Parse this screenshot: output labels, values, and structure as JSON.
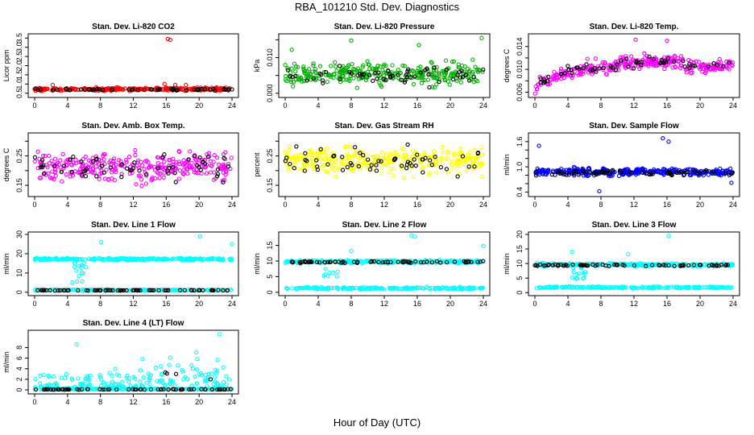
{
  "title": "RBA_101210  Std. Dev. Diagnostics",
  "xlabel": "Hour of Day (UTC)",
  "chart_data": [
    {
      "type": "scatter",
      "title": "Stan. Dev. Li-820 CO2",
      "ylabel": "Licor ppm",
      "xlim": [
        0,
        24
      ],
      "ylim": [
        0.4,
        3.6
      ],
      "xticks": [
        0,
        4,
        8,
        12,
        16,
        20,
        24
      ],
      "yticks": [
        0.5,
        1.0,
        1.5,
        2.0,
        2.5,
        3.0,
        3.5
      ],
      "ytick_labels": [
        "0.5",
        "1.0",
        "1.5",
        "2.0",
        "2.5",
        "3.0",
        "3.5"
      ],
      "series": [
        {
          "color": "#ff0000",
          "base": 0.72,
          "spread": 0.06,
          "n": 260,
          "outliers": [
            [
              16.2,
              3.45
            ],
            [
              16.5,
              3.4
            ],
            [
              18.4,
              0.95
            ],
            [
              15.8,
              1.0
            ],
            [
              2.2,
              0.95
            ],
            [
              17.1,
              0.95
            ]
          ]
        },
        {
          "color": "#000000",
          "base": 0.7,
          "spread": 0.04,
          "n": 60
        }
      ]
    },
    {
      "type": "scatter",
      "title": "Stan. Dev. Li-820 Pressure",
      "ylabel": "kPa",
      "xlim": [
        0,
        24
      ],
      "ylim": [
        -0.0005,
        0.016
      ],
      "xticks": [
        0,
        4,
        8,
        12,
        16,
        20,
        24
      ],
      "yticks": [
        0.0,
        0.005,
        0.01,
        0.015
      ],
      "ytick_labels": [
        "0.000",
        "",
        "0.010",
        ""
      ],
      "series": [
        {
          "color": "#00b000",
          "base": 0.0055,
          "spread": 0.0025,
          "n": 300,
          "outliers": [
            [
              23.8,
              0.0155
            ],
            [
              8.0,
              0.0148
            ],
            [
              16.2,
              0.0135
            ],
            [
              0.8,
              0.0122
            ]
          ]
        },
        {
          "color": "#000000",
          "base": 0.005,
          "spread": 0.002,
          "n": 60
        }
      ]
    },
    {
      "type": "scatter",
      "title": "Stan. Dev. Li-820 Temp.",
      "ylabel": "degrees C",
      "xlim": [
        0,
        24
      ],
      "ylim": [
        0.0055,
        0.0158
      ],
      "xticks": [
        0,
        4,
        8,
        12,
        16,
        20,
        24
      ],
      "yticks": [
        0.006,
        0.008,
        0.01,
        0.012,
        0.014
      ],
      "ytick_labels": [
        "0.006",
        "",
        "0.010",
        "",
        "0.014"
      ],
      "series": [
        {
          "color": "#ff00ff",
          "curve": "rise",
          "spread": 0.0008,
          "n": 320,
          "outliers": [
            [
              12.2,
              0.0152
            ],
            [
              16.0,
              0.015
            ]
          ]
        },
        {
          "color": "#000000",
          "curve": "rise",
          "spread": 0.0006,
          "n": 60
        }
      ]
    },
    {
      "type": "scatter",
      "title": "Stan. Dev. Amb. Box Temp.",
      "ylabel": "degrees C",
      "xlim": [
        0,
        24
      ],
      "ylim": [
        0.12,
        0.32
      ],
      "xticks": [
        0,
        4,
        8,
        12,
        16,
        20,
        24
      ],
      "yticks": [
        0.15,
        0.2,
        0.25,
        0.3
      ],
      "ytick_labels": [
        "0.15",
        "",
        "0.25",
        ""
      ],
      "series": [
        {
          "color": "#ff00ff",
          "base": 0.215,
          "spread": 0.04,
          "n": 300
        },
        {
          "color": "#000000",
          "base": 0.215,
          "spread": 0.04,
          "n": 60
        }
      ]
    },
    {
      "type": "scatter",
      "title": "Stan. Dev. Gas Stream RH",
      "ylabel": "percent",
      "xlim": [
        0,
        24
      ],
      "ylim": [
        0.12,
        0.32
      ],
      "xticks": [
        0,
        4,
        8,
        12,
        16,
        20,
        24
      ],
      "yticks": [
        0.15,
        0.2,
        0.25,
        0.3
      ],
      "ytick_labels": [
        "0.15",
        "",
        "0.25",
        ""
      ],
      "series": [
        {
          "color": "#ffff00",
          "base": 0.235,
          "spread": 0.035,
          "n": 320
        },
        {
          "color": "#000000",
          "base": 0.23,
          "spread": 0.035,
          "n": 60
        }
      ]
    },
    {
      "type": "scatter",
      "title": "Stan. Dev. Sample Flow",
      "ylabel": "ml/min",
      "xlim": [
        0,
        24
      ],
      "ylim": [
        0.35,
        1.75
      ],
      "xticks": [
        0,
        4,
        8,
        12,
        16,
        20,
        24
      ],
      "yticks": [
        0.4,
        0.6,
        0.8,
        1.0,
        1.2,
        1.4,
        1.6
      ],
      "ytick_labels": [
        "0.4",
        "",
        "",
        "1.0",
        "",
        "",
        "1.6"
      ],
      "series": [
        {
          "color": "#0000ff",
          "base": 0.88,
          "spread": 0.07,
          "n": 320,
          "outliers": [
            [
              0.5,
              1.5
            ],
            [
              15.5,
              1.68
            ],
            [
              16.2,
              1.6
            ],
            [
              7.8,
              0.42
            ],
            [
              23.8,
              0.62
            ]
          ]
        },
        {
          "color": "#000000",
          "base": 0.86,
          "spread": 0.05,
          "n": 60
        }
      ]
    },
    {
      "type": "scatter",
      "title": "Stan. Dev. Line 1 Flow",
      "ylabel": "ml/min",
      "xlim": [
        0,
        24
      ],
      "ylim": [
        -0.5,
        30
      ],
      "xticks": [
        0,
        4,
        8,
        12,
        16,
        20,
        24
      ],
      "yticks": [
        0,
        10,
        20,
        30
      ],
      "ytick_labels": [
        "0",
        "10",
        "20",
        "30"
      ],
      "series": [
        {
          "color": "#00ffff",
          "base": 17.2,
          "spread": 0.4,
          "n": 300,
          "dip": [
            5.5,
            13
          ],
          "outliers": [
            [
              8.1,
              26
            ],
            [
              20.1,
              29
            ],
            [
              24,
              25
            ]
          ]
        },
        {
          "color": "#00ffff",
          "base": 1.2,
          "spread": 0.2,
          "n": 200
        },
        {
          "color": "#000000",
          "base": 1.0,
          "spread": 0.1,
          "n": 70
        }
      ]
    },
    {
      "type": "scatter",
      "title": "Stan. Dev. Line 2 Flow",
      "ylabel": "ml/min",
      "xlim": [
        0,
        24
      ],
      "ylim": [
        -0.3,
        18.5
      ],
      "xticks": [
        0,
        4,
        8,
        12,
        16,
        20,
        24
      ],
      "yticks": [
        0,
        5,
        10,
        15
      ],
      "ytick_labels": [
        "0",
        "5",
        "10",
        "15"
      ],
      "series": [
        {
          "color": "#00ffff",
          "base": 9.8,
          "spread": 0.35,
          "n": 300,
          "dip": [
            5.5,
            5
          ],
          "outliers": [
            [
              15.3,
              18.2
            ],
            [
              15.7,
              17.8
            ],
            [
              24,
              14.8
            ],
            [
              8.0,
              13.2
            ]
          ]
        },
        {
          "color": "#00ffff",
          "base": 1.3,
          "spread": 0.25,
          "n": 200
        },
        {
          "color": "#000000",
          "base": 9.7,
          "spread": 0.25,
          "n": 70
        }
      ]
    },
    {
      "type": "scatter",
      "title": "Stan. Dev. Line 3 Flow",
      "ylabel": "ml/min",
      "xlim": [
        0,
        24
      ],
      "ylim": [
        -0.2,
        20
      ],
      "xticks": [
        0,
        4,
        8,
        12,
        16,
        20,
        24
      ],
      "yticks": [
        0,
        5,
        10,
        15,
        20
      ],
      "ytick_labels": [
        "0",
        "5",
        "10",
        "15",
        "20"
      ],
      "series": [
        {
          "color": "#00ffff",
          "base": 9.6,
          "spread": 0.35,
          "n": 300,
          "dip": [
            5.5,
            5
          ],
          "outliers": [
            [
              16.2,
              19.5
            ],
            [
              4.5,
              14
            ],
            [
              11.3,
              13.2
            ]
          ]
        },
        {
          "color": "#00ffff",
          "base": 1.8,
          "spread": 0.25,
          "n": 200
        },
        {
          "color": "#000000",
          "base": 9.4,
          "spread": 0.25,
          "n": 70
        }
      ]
    },
    {
      "type": "scatter",
      "title": "Stan. Dev. Line 4 (LT) Flow",
      "ylabel": "ml/min",
      "xlim": [
        0,
        24
      ],
      "ylim": [
        -0.3,
        10.8
      ],
      "xticks": [
        0,
        4,
        8,
        12,
        16,
        20,
        24
      ],
      "yticks": [
        0,
        2,
        4,
        6,
        8
      ],
      "ytick_labels": [
        "0",
        "2",
        "4",
        "6",
        "8"
      ],
      "series": [
        {
          "color": "#00ffff",
          "sparse": true,
          "base": 0.2,
          "spread": 1.8,
          "n": 180,
          "outliers": [
            [
              22.5,
              10.5
            ],
            [
              5.1,
              8.6
            ],
            [
              13.1,
              5.8
            ]
          ]
        },
        {
          "color": "#00ffff",
          "base": 0.15,
          "spread": 0.05,
          "n": 200
        },
        {
          "color": "#000000",
          "base": 0.1,
          "spread": 0.05,
          "n": 70,
          "outliers": [
            [
              15.9,
              3.3
            ],
            [
              16.1,
              3.1
            ],
            [
              17.2,
              3.0
            ],
            [
              21.4,
              2.0
            ]
          ]
        }
      ]
    }
  ]
}
